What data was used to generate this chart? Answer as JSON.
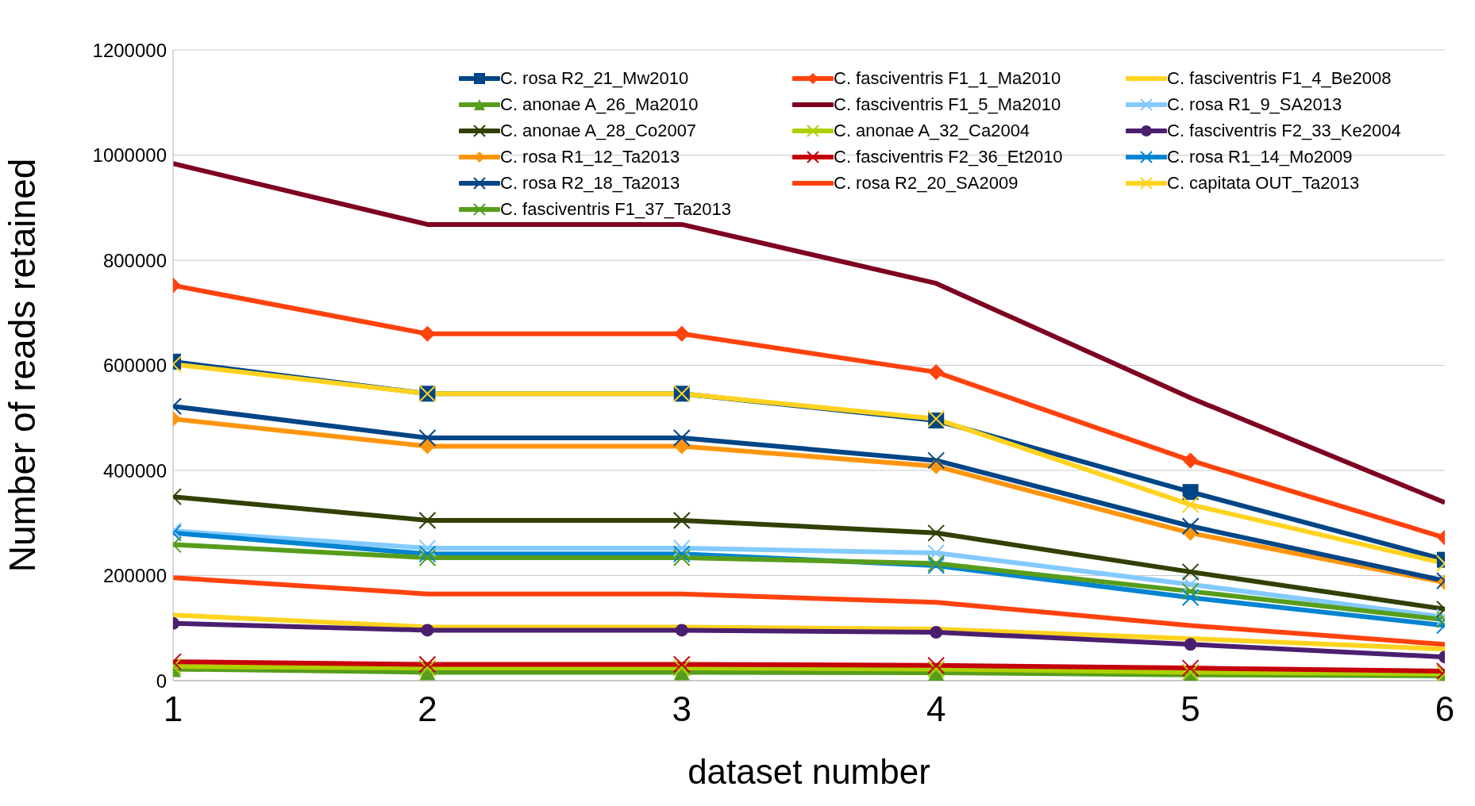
{
  "chart_data": {
    "type": "line",
    "xlabel": "dataset number",
    "ylabel": "Number of reads retained",
    "x": [
      1,
      2,
      3,
      4,
      5,
      6
    ],
    "xlim": [
      1,
      6
    ],
    "xticks": [
      1,
      2,
      3,
      4,
      5,
      6
    ],
    "ylim": [
      0,
      1200000
    ],
    "yticks": [
      0,
      200000,
      400000,
      600000,
      800000,
      1000000,
      1200000
    ],
    "grid": "y",
    "legend": "top",
    "line_style": "solid",
    "series": [
      {
        "name": "C. rosa R2_21_Mw2010",
        "color": "#004586",
        "marker": "square",
        "values": [
          607000,
          546000,
          546000,
          495000,
          359000,
          230000
        ]
      },
      {
        "name": "C. fasciventris F1_1_Ma2010",
        "color": "#ff420e",
        "marker": "diamond",
        "values": [
          752000,
          660000,
          660000,
          587000,
          419000,
          272000
        ]
      },
      {
        "name": "C. fasciventris F1_4_Be2008",
        "color": "#ffd320",
        "marker": "none",
        "values": [
          125000,
          102000,
          102000,
          98000,
          80000,
          60000
        ]
      },
      {
        "name": "C. anonae A_26_Ma2010",
        "color": "#579d1c",
        "marker": "triangle",
        "values": [
          22000,
          16000,
          16000,
          15000,
          11000,
          9000
        ]
      },
      {
        "name": "C. fasciventris F1_5_Ma2010",
        "color": "#7e0021",
        "marker": "none",
        "values": [
          984000,
          868000,
          868000,
          756000,
          538000,
          339000
        ]
      },
      {
        "name": "C. rosa R1_9_SA2013",
        "color": "#83caff",
        "marker": "cross",
        "values": [
          285000,
          252000,
          252000,
          243000,
          183000,
          121000
        ]
      },
      {
        "name": "C. anonae A_28_Co2007",
        "color": "#314004",
        "marker": "cross",
        "values": [
          350000,
          305000,
          305000,
          281000,
          207000,
          136000
        ]
      },
      {
        "name": "C. anonae A_32_Ca2004",
        "color": "#aecf00",
        "marker": "cross",
        "values": [
          27000,
          24000,
          24000,
          22000,
          16000,
          13000
        ]
      },
      {
        "name": "C. fasciventris F2_33_Ke2004",
        "color": "#4b1f6f",
        "marker": "circle",
        "values": [
          109000,
          96000,
          96000,
          92000,
          69000,
          45000
        ]
      },
      {
        "name": "C. rosa R1_12_Ta2013",
        "color": "#ff950e",
        "marker": "diamond",
        "values": [
          498000,
          446000,
          446000,
          408000,
          281000,
          187000
        ]
      },
      {
        "name": "C. fasciventris F2_36_Et2010",
        "color": "#c5000b",
        "marker": "cross",
        "values": [
          36000,
          31000,
          31000,
          29000,
          24000,
          18000
        ]
      },
      {
        "name": "C. rosa R1_14_Mo2009",
        "color": "#0084d1",
        "marker": "cross",
        "values": [
          281000,
          241000,
          241000,
          219000,
          158000,
          105000
        ]
      },
      {
        "name": "C. rosa R2_18_Ta2013",
        "color": "#004586",
        "marker": "cross",
        "values": [
          522000,
          462000,
          462000,
          419000,
          294000,
          190000
        ]
      },
      {
        "name": "C. rosa R2_20_SA2009",
        "color": "#ff420e",
        "marker": "none",
        "values": [
          196000,
          165000,
          165000,
          149000,
          105000,
          69000
        ]
      },
      {
        "name": "C. capitata OUT_Ta2013",
        "color": "#ffd320",
        "marker": "cross",
        "values": [
          602000,
          546000,
          546000,
          498000,
          335000,
          223000
        ]
      },
      {
        "name": "C. fasciventris F1_37_Ta2013",
        "color": "#579d1c",
        "marker": "cross",
        "values": [
          259000,
          234000,
          234000,
          223000,
          170000,
          116000
        ]
      }
    ]
  }
}
